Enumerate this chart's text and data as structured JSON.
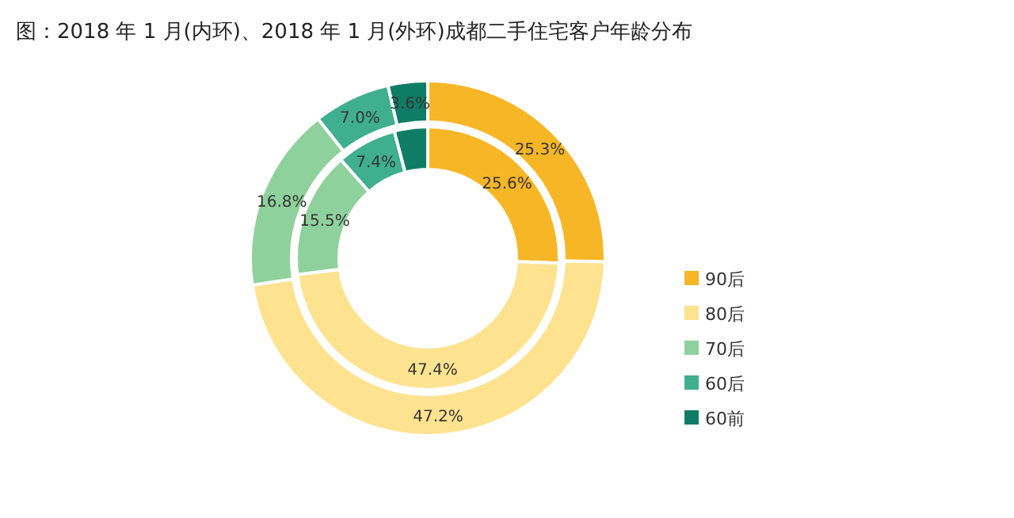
{
  "chart_data": {
    "type": "donut",
    "title": "图：2018 年 1 月(内环)、2018 年 1 月(外环)成都二手住宅客户年龄分布",
    "categories": [
      "90后",
      "80后",
      "70后",
      "60后",
      "60前"
    ],
    "colors": [
      "#f7b626",
      "#fde390",
      "#8fd19c",
      "#3faf8f",
      "#0f7d66"
    ],
    "legend": "right",
    "series": [
      {
        "values": [
          25.6,
          47.4,
          15.5,
          7.4,
          4.1
        ],
        "value_labels": [
          "25.6%",
          "47.4%",
          "15.5%",
          "7.4%",
          null
        ]
      },
      {
        "values": [
          25.3,
          47.2,
          16.8,
          7.0,
          3.6
        ],
        "value_labels": [
          "25.3%",
          "47.2%",
          "16.8%",
          "7.0%",
          "3.6%"
        ]
      }
    ]
  }
}
